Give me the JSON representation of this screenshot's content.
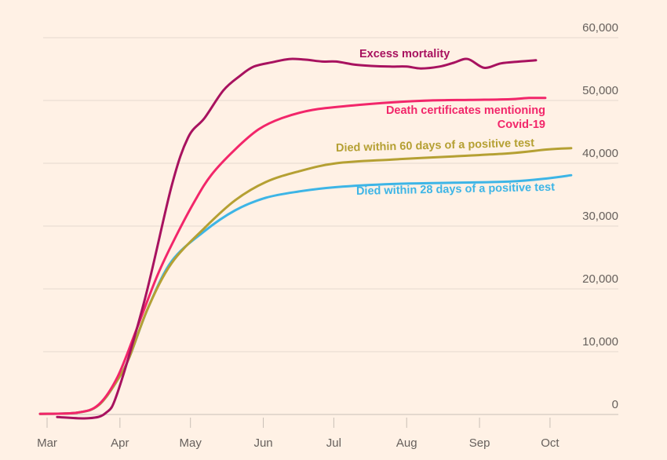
{
  "chart_data": {
    "type": "line",
    "title": "",
    "xlabel": "",
    "ylabel": "",
    "x_unit": "days since 1 March",
    "xlim": [
      -3,
      228
    ],
    "ylim": [
      0,
      60000
    ],
    "grid": true,
    "y_ticks": [
      0,
      10000,
      20000,
      30000,
      40000,
      50000,
      60000
    ],
    "y_tick_labels": [
      "0",
      "10,000",
      "20,000",
      "30,000",
      "40,000",
      "50,000",
      "60,000"
    ],
    "x_ticks": [
      0,
      31,
      61,
      92,
      122,
      153,
      184,
      214
    ],
    "x_tick_labels": [
      "Mar",
      "Apr",
      "May",
      "Jun",
      "Jul",
      "Aug",
      "Sep",
      "Oct"
    ],
    "series": [
      {
        "name": "Died within 28 days of a positive test",
        "color": "#3db5e6",
        "x": [
          -3,
          13,
          22,
          30,
          35,
          43,
          53,
          67,
          80,
          93,
          107,
          123,
          147,
          173,
          197,
          213,
          223
        ],
        "y": [
          100,
          300,
          1500,
          5500,
          9100,
          17000,
          24400,
          29200,
          32500,
          34500,
          35500,
          36200,
          36700,
          36900,
          37100,
          37600,
          38100
        ]
      },
      {
        "name": "Died within 60 days of a positive test",
        "color": "#b5a033",
        "x": [
          -3,
          13,
          22,
          30,
          35,
          43,
          53,
          67,
          80,
          93,
          107,
          123,
          147,
          173,
          197,
          213,
          223
        ],
        "y": [
          100,
          300,
          1500,
          5500,
          9100,
          17000,
          24100,
          29700,
          34100,
          37000,
          38700,
          40000,
          40600,
          41100,
          41600,
          42200,
          42400
        ]
      },
      {
        "name": "Death certificates mentioning Covid-19",
        "color": "#f2266a",
        "x": [
          -3,
          13,
          22,
          30,
          38,
          47,
          55,
          63,
          70,
          80,
          90,
          100,
          113,
          130,
          147,
          163,
          180,
          197,
          205,
          212
        ],
        "y": [
          100,
          300,
          1600,
          6000,
          13500,
          22200,
          28500,
          34100,
          38200,
          42200,
          45400,
          47200,
          48500,
          49200,
          49700,
          50000,
          50100,
          50200,
          50400,
          50400
        ]
      },
      {
        "name": "Excess mortality",
        "color": "#a8125f",
        "x": [
          4.3,
          17.7,
          25,
          30,
          41.7,
          53,
          60,
          67,
          75,
          82,
          88,
          96,
          103,
          110,
          117,
          123,
          131,
          138,
          146,
          153,
          159,
          167,
          173,
          179,
          186,
          193,
          201,
          208
        ],
        "y": [
          -400,
          -600,
          250,
          3500,
          18500,
          36400,
          44100,
          47200,
          51600,
          53900,
          55400,
          56100,
          56600,
          56500,
          56200,
          56200,
          55700,
          55500,
          55400,
          55400,
          55100,
          55400,
          56000,
          56600,
          55200,
          55900,
          56200,
          56400
        ]
      }
    ]
  }
}
